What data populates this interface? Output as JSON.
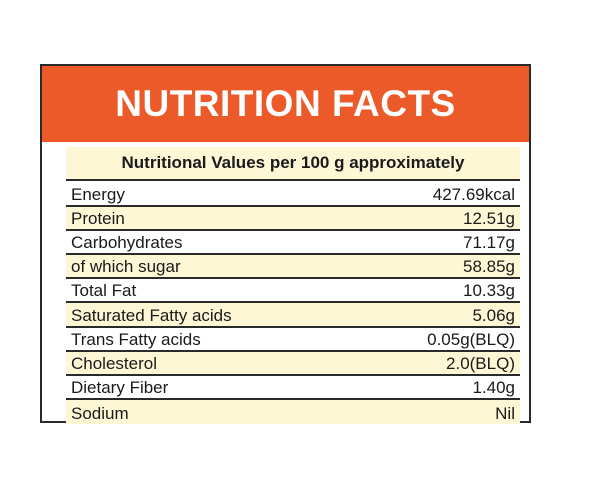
{
  "header": {
    "title": "NUTRITION FACTS"
  },
  "subtitle": "Nutritional Values per 100 g approximately",
  "rows": [
    {
      "label": "Energy",
      "value": "427.69kcal"
    },
    {
      "label": "Protein",
      "value": "12.51g"
    },
    {
      "label": "Carbohydrates",
      "value": "71.17g"
    },
    {
      "label": "of which sugar",
      "value": "58.85g"
    },
    {
      "label": "Total Fat",
      "value": "10.33g"
    },
    {
      "label": "Saturated Fatty acids",
      "value": "5.06g"
    },
    {
      "label": "Trans Fatty acids",
      "value": "0.05g(BLQ)"
    },
    {
      "label": "Cholesterol",
      "value": "2.0(BLQ)"
    },
    {
      "label": "Dietary Fiber",
      "value": "1.40g"
    },
    {
      "label": "Sodium",
      "value": "Nil"
    }
  ],
  "colors": {
    "header_bg": "#ec5a2a",
    "row_tint": "#fdf7d6",
    "border": "#2a2a2a"
  }
}
